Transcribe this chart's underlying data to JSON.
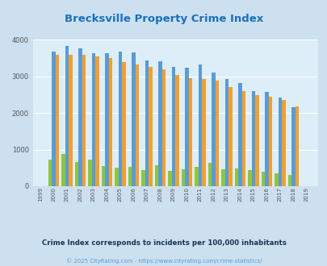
{
  "title": "Brecksville Property Crime Index",
  "title_color": "#1a6fbb",
  "years": [
    "1999",
    "2000",
    "2001",
    "2002",
    "2003",
    "2004",
    "2005",
    "2006",
    "2007",
    "2008",
    "2009",
    "2010",
    "2011",
    "2012",
    "2013",
    "2014",
    "2015",
    "2016",
    "2017",
    "2018",
    "2019"
  ],
  "brecksville": [
    0,
    720,
    880,
    670,
    730,
    550,
    510,
    520,
    450,
    570,
    420,
    470,
    530,
    630,
    460,
    490,
    440,
    400,
    360,
    300,
    0
  ],
  "ohio": [
    0,
    3680,
    3830,
    3760,
    3640,
    3640,
    3670,
    3660,
    3440,
    3420,
    3260,
    3240,
    3330,
    3110,
    2940,
    2820,
    2590,
    2570,
    2420,
    2160,
    0
  ],
  "national": [
    0,
    3600,
    3600,
    3600,
    3550,
    3500,
    3400,
    3330,
    3260,
    3200,
    3050,
    2950,
    2930,
    2880,
    2720,
    2600,
    2490,
    2440,
    2360,
    2190,
    0
  ],
  "brecksville_color": "#8dc63f",
  "ohio_color": "#5b9bd5",
  "national_color": "#f0a030",
  "bg_color": "#cce0f0",
  "plot_bg_color": "#ddeef8",
  "ylim": [
    0,
    4000
  ],
  "yticks": [
    0,
    1000,
    2000,
    3000,
    4000
  ],
  "footnote": "Crime Index corresponds to incidents per 100,000 inhabitants",
  "copyright": "© 2025 CityRating.com - https://www.cityrating.com/crime-statistics/",
  "copyright_color": "#5b9bd5",
  "footnote_color": "#1a3355"
}
